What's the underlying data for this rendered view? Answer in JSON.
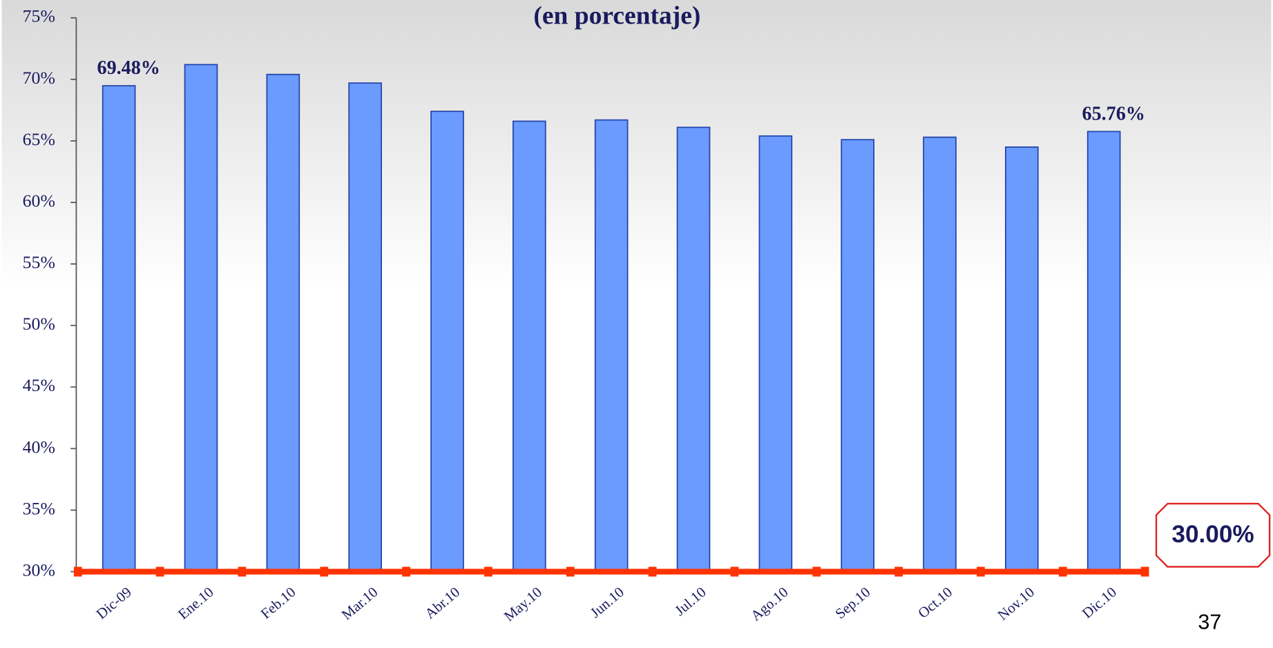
{
  "chart_data": {
    "type": "bar",
    "title": "(en porcentaje)",
    "categories": [
      "Dic-09",
      "Ene.10",
      "Feb.10",
      "Mar.10",
      "Abr.10",
      "May.10",
      "Jun.10",
      "Jul.10",
      "Ago.10",
      "Sep.10",
      "Oct.10",
      "Nov.10",
      "Dic.10"
    ],
    "values": [
      69.48,
      71.2,
      70.4,
      69.7,
      67.4,
      66.6,
      66.7,
      66.1,
      65.4,
      65.1,
      65.3,
      64.5,
      65.76
    ],
    "value_labels": [
      "69.48%",
      null,
      null,
      null,
      null,
      null,
      null,
      null,
      null,
      null,
      null,
      null,
      "65.76%"
    ],
    "color": "#6b9bff",
    "ylim": [
      30,
      75
    ],
    "yticks": [
      {
        "value": 30,
        "label": "30%"
      },
      {
        "value": 35,
        "label": "35%"
      },
      {
        "value": 40,
        "label": "40%"
      },
      {
        "value": 45,
        "label": "45%"
      },
      {
        "value": 50,
        "label": "50%"
      },
      {
        "value": 55,
        "label": "55%"
      },
      {
        "value": 60,
        "label": "60%"
      },
      {
        "value": 65,
        "label": "65%"
      },
      {
        "value": 70,
        "label": "70%"
      },
      {
        "value": 75,
        "label": "75%"
      }
    ],
    "threshold": {
      "value": 30,
      "label": "30.00%",
      "color": "#ff3300"
    }
  },
  "page_number": "37"
}
